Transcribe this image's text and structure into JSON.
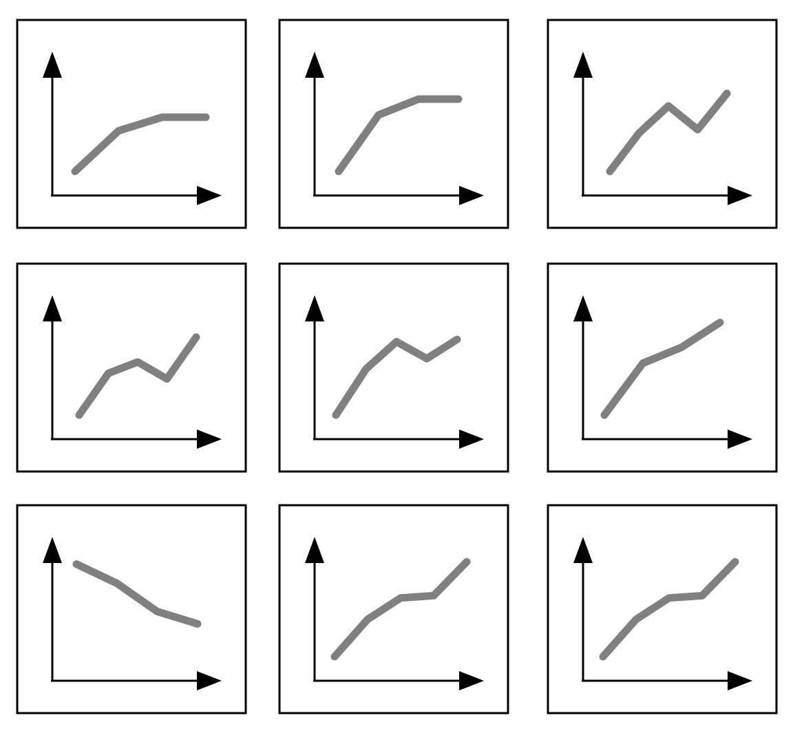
{
  "colors": {
    "frame": "#000000",
    "axes": "#000000",
    "line": "#808080",
    "background": "#ffffff"
  },
  "chart_data": [
    {
      "type": "line",
      "x": [
        0,
        1,
        2,
        3
      ],
      "y": [
        0.0,
        0.36,
        0.48,
        0.48
      ]
    },
    {
      "type": "line",
      "x": [
        0,
        1,
        2,
        3
      ],
      "y": [
        0.0,
        0.5,
        0.64,
        0.64
      ]
    },
    {
      "type": "line",
      "x": [
        0,
        1,
        2,
        3,
        4
      ],
      "y": [
        0.0,
        0.34,
        0.58,
        0.37,
        0.69
      ]
    },
    {
      "type": "line",
      "x": [
        0,
        1,
        2,
        3,
        4
      ],
      "y": [
        0.0,
        0.37,
        0.47,
        0.32,
        0.69
      ]
    },
    {
      "type": "line",
      "x": [
        0,
        1,
        2,
        3,
        4
      ],
      "y": [
        0.0,
        0.41,
        0.65,
        0.5,
        0.67
      ]
    },
    {
      "type": "line",
      "x": [
        0,
        1,
        2,
        3
      ],
      "y": [
        0.0,
        0.46,
        0.6,
        0.82
      ]
    },
    {
      "type": "line",
      "x": [
        0,
        1,
        2,
        3
      ],
      "y": [
        0.82,
        0.65,
        0.4,
        0.29
      ]
    },
    {
      "type": "line",
      "x": [
        0,
        1,
        2,
        3,
        4
      ],
      "y": [
        0.0,
        0.33,
        0.52,
        0.54,
        0.84
      ]
    },
    {
      "type": "line",
      "x": [
        0,
        1,
        2,
        3,
        4
      ],
      "y": [
        0.0,
        0.33,
        0.52,
        0.54,
        0.84
      ]
    }
  ]
}
